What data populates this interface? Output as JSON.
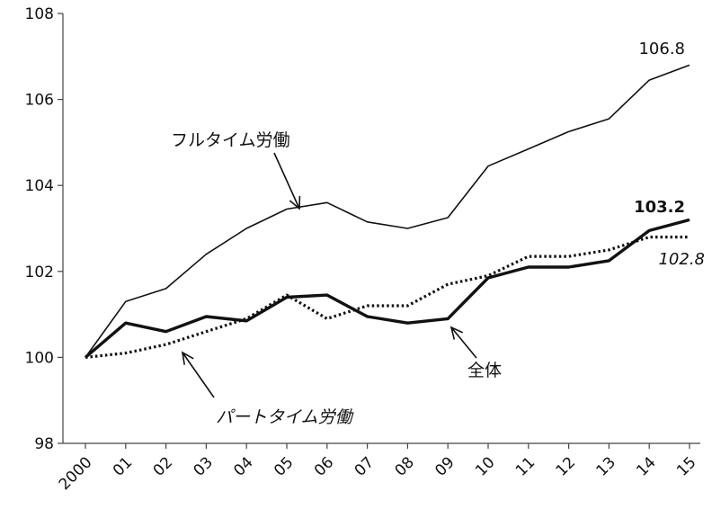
{
  "chart_data": {
    "type": "line",
    "title": "",
    "xlabel": "",
    "ylabel": "",
    "categories": [
      "2000",
      "01",
      "02",
      "03",
      "04",
      "05",
      "06",
      "07",
      "08",
      "09",
      "10",
      "11",
      "12",
      "13",
      "14",
      "15"
    ],
    "ylim": [
      98,
      108
    ],
    "yticks": [
      "98",
      "100",
      "102",
      "104",
      "106",
      "108"
    ],
    "grid": false,
    "series": [
      {
        "name": "フルタイム労働",
        "style": "thin",
        "values": [
          100,
          101.3,
          101.6,
          102.4,
          103.0,
          103.45,
          103.6,
          103.15,
          103.0,
          103.25,
          104.45,
          104.85,
          105.25,
          105.55,
          106.45,
          106.8
        ],
        "end_label": "106.8"
      },
      {
        "name": "全体",
        "style": "bold",
        "values": [
          100,
          100.8,
          100.6,
          100.95,
          100.85,
          101.4,
          101.45,
          100.95,
          100.8,
          100.9,
          101.85,
          102.1,
          102.1,
          102.25,
          102.95,
          103.2
        ],
        "end_label": "103.2"
      },
      {
        "name": "パートタイム労働",
        "style": "dotted",
        "values": [
          100,
          100.1,
          100.3,
          100.6,
          100.9,
          101.45,
          100.9,
          101.2,
          101.2,
          101.7,
          101.9,
          102.35,
          102.35,
          102.5,
          102.8,
          102.8
        ],
        "end_label": "102.8"
      }
    ],
    "annotations": [
      {
        "text": "フルタイム労働",
        "series": 0,
        "points_to": 5
      },
      {
        "text": "全体",
        "series": 1,
        "points_to": 9
      },
      {
        "text": "パートタイム労働",
        "series": 2,
        "points_to": 3
      }
    ]
  }
}
